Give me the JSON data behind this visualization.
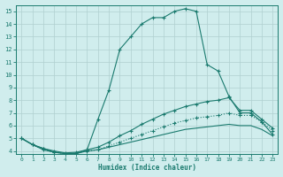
{
  "xlabel": "Humidex (Indice chaleur)",
  "xlim": [
    -0.5,
    23.5
  ],
  "ylim": [
    3.8,
    15.5
  ],
  "yticks": [
    4,
    5,
    6,
    7,
    8,
    9,
    10,
    11,
    12,
    13,
    14,
    15
  ],
  "xticks": [
    0,
    1,
    2,
    3,
    4,
    5,
    6,
    7,
    8,
    9,
    10,
    11,
    12,
    13,
    14,
    15,
    16,
    17,
    18,
    19,
    20,
    21,
    22,
    23
  ],
  "background_color": "#d0eded",
  "line_color": "#1a7a6e",
  "grid_color": "#afd0d0",
  "series": [
    {
      "x": [
        0,
        1,
        2,
        3,
        4,
        5,
        6,
        7,
        8,
        9,
        10,
        11,
        12,
        13,
        14,
        15,
        16,
        17,
        18,
        19,
        20,
        21,
        22,
        23
      ],
      "y": [
        5.0,
        4.5,
        4.2,
        3.9,
        3.8,
        3.8,
        4.1,
        6.5,
        8.8,
        12.0,
        13.0,
        14.0,
        14.5,
        14.5,
        15.0,
        15.2,
        15.0,
        10.8,
        10.3,
        8.3,
        7.0,
        7.0,
        6.3,
        5.3
      ],
      "style": "solid",
      "marker": "+"
    },
    {
      "x": [
        0,
        1,
        2,
        3,
        4,
        5,
        6,
        7,
        8,
        9,
        10,
        11,
        12,
        13,
        14,
        15,
        16,
        17,
        18,
        19,
        20,
        21,
        22,
        23
      ],
      "y": [
        5.0,
        4.5,
        4.2,
        4.0,
        3.85,
        3.9,
        4.1,
        4.3,
        4.7,
        5.2,
        5.6,
        6.1,
        6.5,
        6.9,
        7.2,
        7.5,
        7.7,
        7.9,
        8.0,
        8.2,
        7.2,
        7.2,
        6.5,
        5.8
      ],
      "style": "solid",
      "marker": "+"
    },
    {
      "x": [
        0,
        1,
        2,
        3,
        4,
        5,
        6,
        7,
        8,
        9,
        10,
        11,
        12,
        13,
        14,
        15,
        16,
        17,
        18,
        19,
        20,
        21,
        22,
        23
      ],
      "y": [
        5.0,
        4.5,
        4.1,
        3.9,
        3.8,
        3.85,
        4.0,
        4.1,
        4.4,
        4.7,
        5.0,
        5.3,
        5.6,
        5.9,
        6.2,
        6.4,
        6.6,
        6.7,
        6.8,
        7.0,
        6.8,
        6.8,
        6.3,
        5.6
      ],
      "style": "dotted",
      "marker": "+"
    },
    {
      "x": [
        0,
        1,
        2,
        3,
        4,
        5,
        6,
        7,
        8,
        9,
        10,
        11,
        12,
        13,
        14,
        15,
        16,
        17,
        18,
        19,
        20,
        21,
        22,
        23
      ],
      "y": [
        5.0,
        4.5,
        4.1,
        3.9,
        3.8,
        3.8,
        4.0,
        4.1,
        4.3,
        4.5,
        4.7,
        4.9,
        5.1,
        5.3,
        5.5,
        5.7,
        5.8,
        5.9,
        6.0,
        6.1,
        6.0,
        6.0,
        5.7,
        5.2
      ],
      "style": "solid",
      "marker": null
    }
  ]
}
